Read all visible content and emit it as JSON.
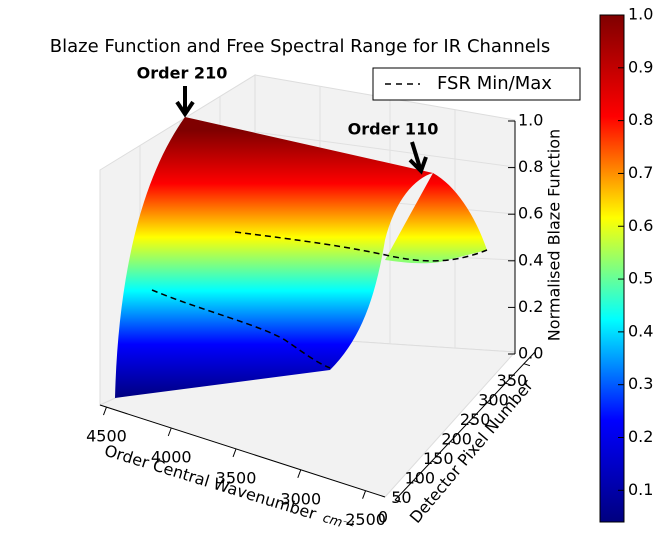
{
  "chart_data": {
    "type": "surface3d",
    "title": "Blaze Function and Free Spectral Range for IR Channels",
    "legend": "FSR Min/Max",
    "annotations": [
      "Order 210",
      "Order 110"
    ],
    "xlabel": "Order Central Wavenumber",
    "xlabel_unit": "cm⁻¹",
    "ylabel": "Detector Pixel Number",
    "zlabel": "Normalised Blaze Function",
    "xlim": [
      4550,
      2350
    ],
    "xticks": [
      4500,
      4000,
      3500,
      3000,
      2500
    ],
    "ylim": [
      0,
      380
    ],
    "yticks": [
      0,
      50,
      100,
      150,
      200,
      250,
      300,
      350
    ],
    "zlim": [
      0,
      1
    ],
    "zticks": [
      {
        "value": 0,
        "label": "0.0"
      },
      0.2,
      0.4,
      0.6,
      0.8,
      {
        "value": 1,
        "label": "1.0"
      }
    ],
    "clim": [
      0.04,
      1
    ],
    "cticks": [
      0.1,
      0.2,
      0.3,
      0.4,
      0.5,
      0.6,
      0.7,
      0.8,
      0.9,
      {
        "value": 1,
        "label": "1.0"
      }
    ],
    "colormap": [
      "#00007f",
      "#0000ff",
      "#00ffff",
      "#ffff00",
      "#ff0000",
      "#7f0000"
    ]
  }
}
